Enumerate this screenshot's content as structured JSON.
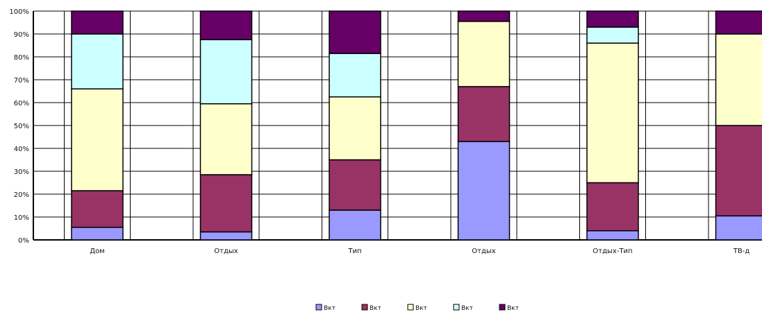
{
  "chart_data": {
    "type": "bar",
    "stacked": true,
    "percent": true,
    "categories": [
      "Дом",
      "Отдых",
      "Тип",
      "Отдых",
      "Отдых-Тип",
      "ТВ-д"
    ],
    "series": [
      {
        "name": "Вкт",
        "color": "#9999ff",
        "values": [
          5.5,
          3.5,
          13,
          43,
          4,
          10.5
        ]
      },
      {
        "name": "Вкт",
        "color": "#993366",
        "values": [
          16,
          25,
          22,
          24,
          21,
          39.5
        ]
      },
      {
        "name": "Вкт",
        "color": "#ffffcc",
        "values": [
          44.5,
          31,
          27.5,
          28.5,
          61,
          40
        ]
      },
      {
        "name": "Вкт",
        "color": "#ccffff",
        "values": [
          24,
          28,
          19,
          0,
          7,
          0
        ]
      },
      {
        "name": "Вкт",
        "color": "#660066",
        "values": [
          10,
          12.5,
          18.5,
          4.5,
          7,
          10
        ]
      }
    ],
    "yticks": [
      "0%",
      "10%",
      "20%",
      "30%",
      "40%",
      "50%",
      "60%",
      "70%",
      "80%",
      "90%",
      "100%"
    ],
    "ylim": [
      0,
      100
    ],
    "grid": true,
    "legend": "bottom"
  }
}
